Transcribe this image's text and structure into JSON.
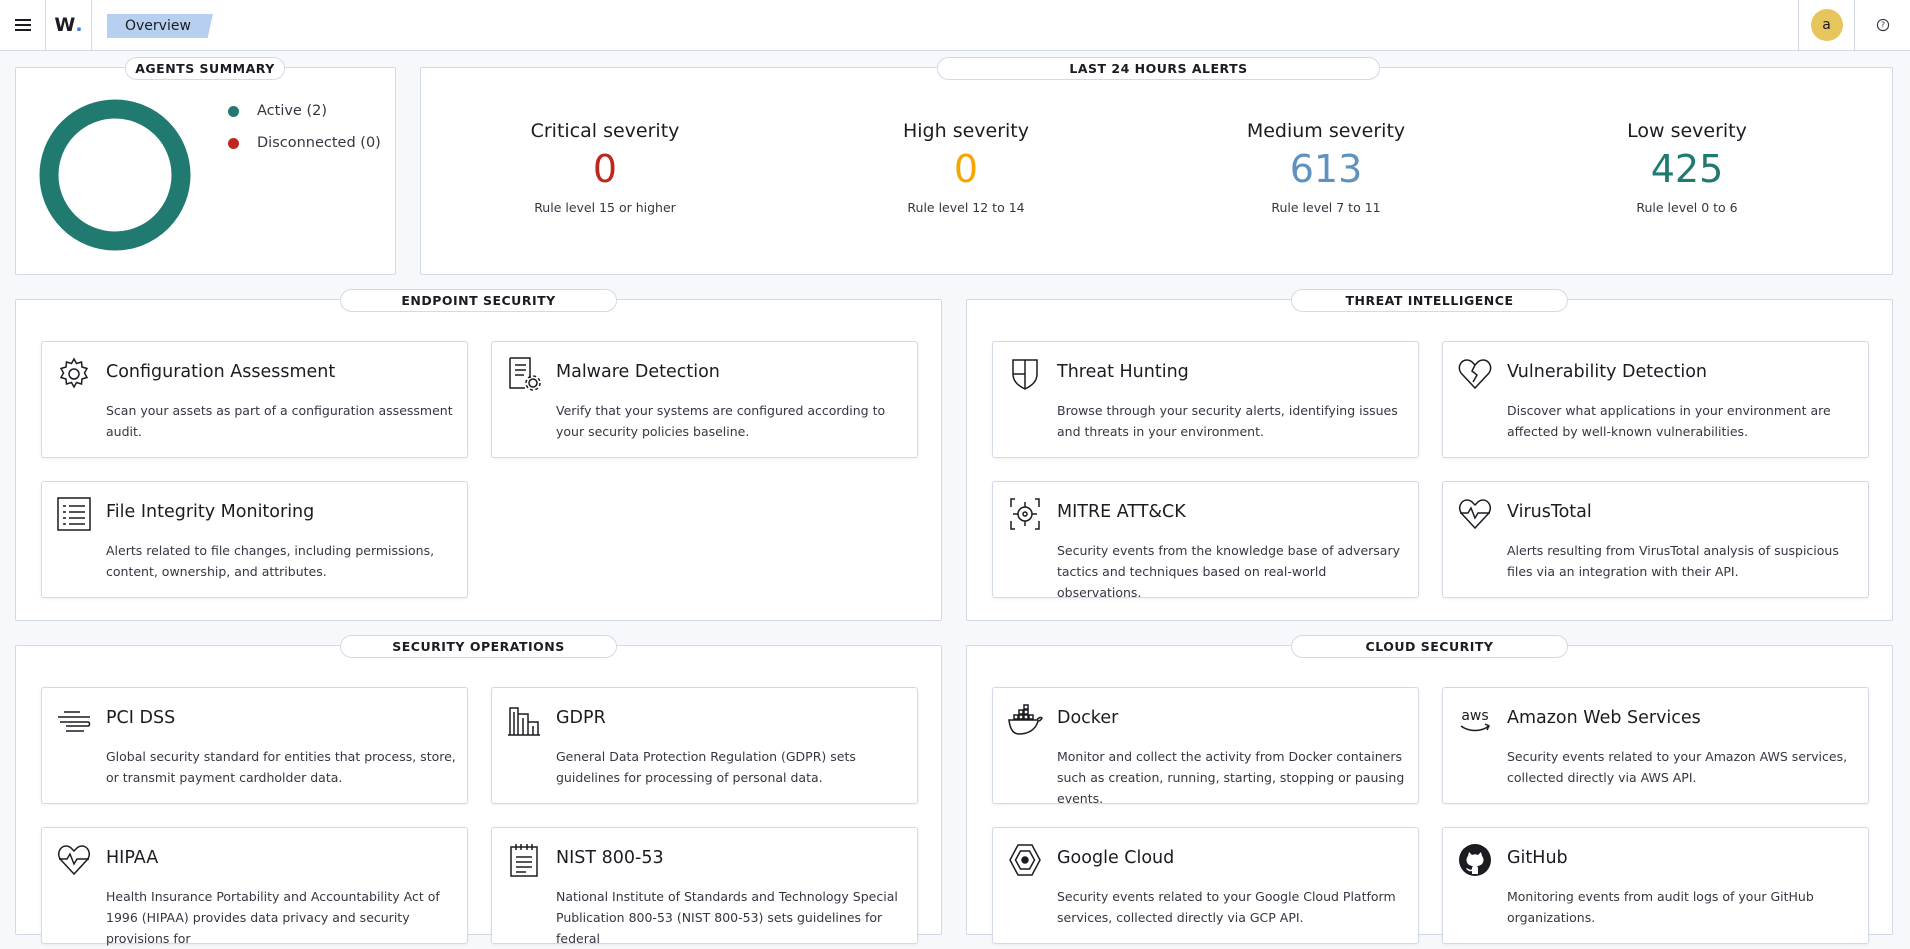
{
  "header": {
    "logo_text": "W",
    "logo_dot": ".",
    "breadcrumb": "Overview",
    "avatar_letter": "a",
    "help_icon_label": "?"
  },
  "agents_summary": {
    "title": "AGENTS SUMMARY",
    "legend": [
      {
        "label": "Active (2)",
        "color": "#207a6f"
      },
      {
        "label": "Disconnected (0)",
        "color": "#bd271e"
      }
    ],
    "ring_color": "#207a6f"
  },
  "alerts": {
    "title": "LAST 24 HOURS ALERTS",
    "items": [
      {
        "title": "Critical severity",
        "value": "0",
        "desc": "Rule level 15 or higher",
        "color": "#bd271e"
      },
      {
        "title": "High severity",
        "value": "0",
        "desc": "Rule level 12 to 14",
        "color": "#f5a700"
      },
      {
        "title": "Medium severity",
        "value": "613",
        "desc": "Rule level 7 to 11",
        "color": "#6092c0"
      },
      {
        "title": "Low severity",
        "value": "425",
        "desc": "Rule level 0 to 6",
        "color": "#207a6f"
      }
    ]
  },
  "sections": {
    "endpoint": {
      "title": "ENDPOINT SECURITY",
      "cards": [
        {
          "title": "Configuration Assessment",
          "desc": "Scan your assets as part of a configuration assessment audit.",
          "icon": "gear-icon"
        },
        {
          "title": "Malware Detection",
          "desc": "Verify that your systems are configured according to your security policies baseline.",
          "icon": "document-gear-icon"
        },
        {
          "title": "File Integrity Monitoring",
          "desc": "Alerts related to file changes, including permissions, content, ownership, and attributes.",
          "icon": "list-document-icon"
        }
      ]
    },
    "threat": {
      "title": "THREAT INTELLIGENCE",
      "cards": [
        {
          "title": "Threat Hunting",
          "desc": "Browse through your security alerts, identifying issues and threats in your environment.",
          "icon": "shield-icon"
        },
        {
          "title": "Vulnerability Detection",
          "desc": "Discover what applications in your environment are affected by well-known vulnerabilities.",
          "icon": "broken-heart-icon"
        },
        {
          "title": "MITRE ATT&CK",
          "desc": "Security events from the knowledge base of adversary tactics and techniques based on real-world observations.",
          "icon": "target-icon"
        },
        {
          "title": "VirusTotal",
          "desc": "Alerts resulting from VirusTotal analysis of suspicious files via an integration with their API.",
          "icon": "heartbeat-icon"
        }
      ]
    },
    "secops": {
      "title": "SECURITY OPERATIONS",
      "cards": [
        {
          "title": "PCI DSS",
          "desc": "Global security standard for entities that process, store, or transmit payment cardholder data.",
          "icon": "pci-icon"
        },
        {
          "title": "GDPR",
          "desc": "General Data Protection Regulation (GDPR) sets guidelines for processing of personal data.",
          "icon": "building-icon"
        },
        {
          "title": "HIPAA",
          "desc": "Health Insurance Portability and Accountability Act of 1996 (HIPAA) provides data privacy and security provisions for",
          "icon": "heartbeat-icon"
        },
        {
          "title": "NIST 800-53",
          "desc": "National Institute of Standards and Technology Special Publication 800-53 (NIST 800-53) sets guidelines for federal",
          "icon": "notepad-icon"
        }
      ]
    },
    "cloud": {
      "title": "CLOUD SECURITY",
      "cards": [
        {
          "title": "Docker",
          "desc": "Monitor and collect the activity from Docker containers such as creation, running, starting, stopping or pausing events.",
          "icon": "docker-icon"
        },
        {
          "title": "Amazon Web Services",
          "desc": "Security events related to your Amazon AWS services, collected directly via AWS API.",
          "icon": "aws-icon"
        },
        {
          "title": "Google Cloud",
          "desc": "Security events related to your Google Cloud Platform services, collected directly via GCP API.",
          "icon": "google-cloud-icon"
        },
        {
          "title": "GitHub",
          "desc": "Monitoring events from audit logs of your GitHub organizations.",
          "icon": "github-icon"
        }
      ]
    }
  }
}
